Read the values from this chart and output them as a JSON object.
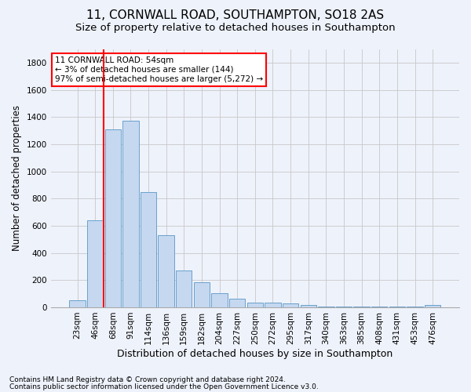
{
  "title": "11, CORNWALL ROAD, SOUTHAMPTON, SO18 2AS",
  "subtitle": "Size of property relative to detached houses in Southampton",
  "xlabel": "Distribution of detached houses by size in Southampton",
  "ylabel": "Number of detached properties",
  "categories": [
    "23sqm",
    "46sqm",
    "68sqm",
    "91sqm",
    "114sqm",
    "136sqm",
    "159sqm",
    "182sqm",
    "204sqm",
    "227sqm",
    "250sqm",
    "272sqm",
    "295sqm",
    "317sqm",
    "340sqm",
    "363sqm",
    "385sqm",
    "408sqm",
    "431sqm",
    "453sqm",
    "476sqm"
  ],
  "values": [
    50,
    640,
    1310,
    1370,
    845,
    530,
    270,
    185,
    105,
    63,
    37,
    35,
    28,
    15,
    5,
    5,
    5,
    5,
    5,
    5,
    15
  ],
  "bar_color": "#c5d8f0",
  "bar_edge_color": "#6aa0cb",
  "background_color": "#eef2fb",
  "grid_color": "#c8c8c8",
  "vline_x_pos": 1.5,
  "vline_color": "red",
  "annotation_text": "11 CORNWALL ROAD: 54sqm\n← 3% of detached houses are smaller (144)\n97% of semi-detached houses are larger (5,272) →",
  "annotation_box_color": "white",
  "annotation_box_edge_color": "red",
  "ylim": [
    0,
    1900
  ],
  "yticks": [
    0,
    200,
    400,
    600,
    800,
    1000,
    1200,
    1400,
    1600,
    1800
  ],
  "footer_line1": "Contains HM Land Registry data © Crown copyright and database right 2024.",
  "footer_line2": "Contains public sector information licensed under the Open Government Licence v3.0.",
  "title_fontsize": 11,
  "subtitle_fontsize": 9.5,
  "xlabel_fontsize": 9,
  "ylabel_fontsize": 8.5,
  "tick_fontsize": 7.5,
  "annotation_fontsize": 7.5,
  "footer_fontsize": 6.5
}
